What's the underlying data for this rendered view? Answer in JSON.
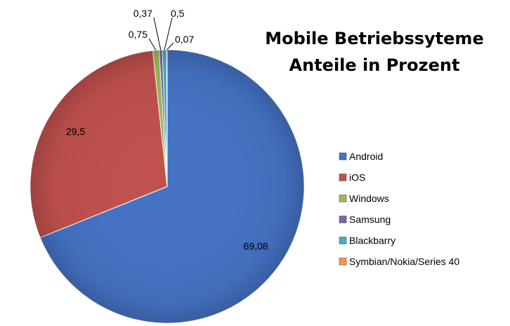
{
  "chart_data": {
    "type": "pie",
    "title_lines": [
      "Mobile Betriebssyteme",
      "Anteile in Prozent"
    ],
    "categories": [
      "Android",
      "iOS",
      "Windows",
      "Samsung",
      "Blackbarry",
      "Symbian/Nokia/Series 40"
    ],
    "values": [
      69.08,
      29.5,
      0.75,
      0.37,
      0.5,
      0.07
    ],
    "data_labels": [
      "69,08",
      "29,5",
      "0,75",
      "0,37",
      "0,5",
      "0,07"
    ],
    "colors": [
      "#4472C4",
      "#C0504D",
      "#9BBB59",
      "#8064A2",
      "#4BACC6",
      "#F79646"
    ],
    "legend_position": "right",
    "start_angle_deg": 0,
    "direction": "clockwise"
  }
}
